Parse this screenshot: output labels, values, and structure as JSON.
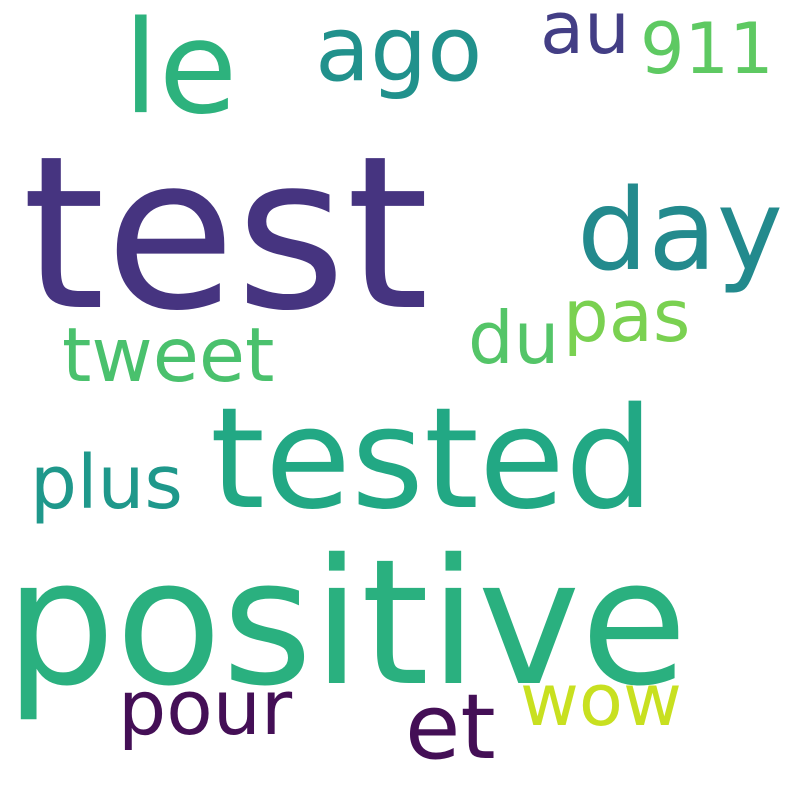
{
  "word_cloud": {
    "background": "#ffffff",
    "words": [
      {
        "text": "test",
        "color": "#463480"
      },
      {
        "text": "positive",
        "color": "#2ab07f"
      },
      {
        "text": "tested",
        "color": "#22a884"
      },
      {
        "text": "le",
        "color": "#2db27d"
      },
      {
        "text": "day",
        "color": "#238a8d"
      },
      {
        "text": "ago",
        "color": "#21918c"
      },
      {
        "text": "et",
        "color": "#440f56"
      },
      {
        "text": "pour",
        "color": "#440f56"
      },
      {
        "text": "tweet",
        "color": "#4ac16d"
      },
      {
        "text": "plus",
        "color": "#1f988b"
      },
      {
        "text": "wow",
        "color": "#c8e020"
      },
      {
        "text": "au",
        "color": "#433e85"
      },
      {
        "text": "pas",
        "color": "#7ad151"
      },
      {
        "text": "du",
        "color": "#54c568"
      },
      {
        "text": "911",
        "color": "#5ec962"
      }
    ]
  }
}
